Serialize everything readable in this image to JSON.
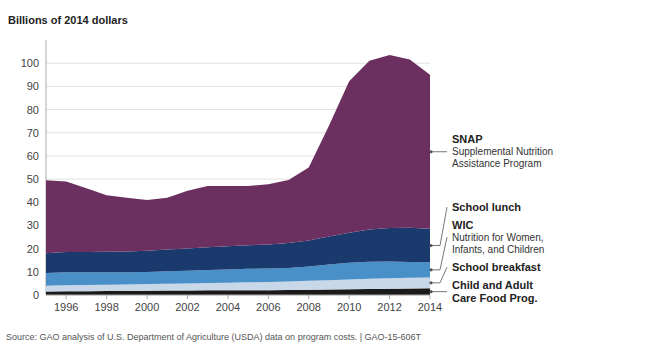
{
  "chart_data": {
    "type": "area",
    "stacked": true,
    "grid": true,
    "ylabel": "Billions of 2014 dollars",
    "x": [
      1995,
      1996,
      1997,
      1998,
      1999,
      2000,
      2001,
      2002,
      2003,
      2004,
      2005,
      2006,
      2007,
      2008,
      2009,
      2010,
      2011,
      2012,
      2013,
      2014
    ],
    "xlim": [
      1995,
      2014
    ],
    "xticks": [
      1996,
      1998,
      2000,
      2002,
      2004,
      2006,
      2008,
      2010,
      2012,
      2014
    ],
    "ylim": [
      0,
      110
    ],
    "yticks": [
      0,
      10,
      20,
      30,
      40,
      50,
      60,
      70,
      80,
      90,
      100
    ],
    "series": [
      {
        "name": "Child and Adult\nCare Food Prog.",
        "color": "#1a1a1a",
        "values": [
          1.5,
          1.6,
          1.6,
          1.7,
          1.7,
          1.8,
          1.9,
          1.9,
          2.0,
          2.0,
          2.1,
          2.1,
          2.2,
          2.3,
          2.4,
          2.5,
          2.6,
          2.7,
          2.8,
          2.9
        ]
      },
      {
        "name": "School breakfast",
        "color": "#c8d8e8",
        "values": [
          2.5,
          2.6,
          2.7,
          2.7,
          2.8,
          2.9,
          3.0,
          3.1,
          3.2,
          3.3,
          3.4,
          3.5,
          3.6,
          3.8,
          4.0,
          4.2,
          4.4,
          4.5,
          4.6,
          4.7
        ]
      },
      {
        "name": "WIC",
        "color": "#4a90c8",
        "values": [
          5.5,
          5.6,
          5.5,
          5.4,
          5.3,
          5.2,
          5.3,
          5.5,
          5.6,
          5.7,
          5.8,
          5.8,
          5.9,
          6.2,
          6.8,
          7.2,
          7.3,
          7.2,
          6.8,
          6.5
        ]
      },
      {
        "name": "School lunch",
        "color": "#1a3a6e",
        "values": [
          8.5,
          8.7,
          8.8,
          8.9,
          9.0,
          9.2,
          9.4,
          9.6,
          9.8,
          10.0,
          10.2,
          10.4,
          10.7,
          11.2,
          12.0,
          13.0,
          14.0,
          14.5,
          14.8,
          14.5
        ]
      },
      {
        "name": "SNAP",
        "color": "#6b3060",
        "values": [
          31.5,
          30.5,
          27.4,
          24.3,
          23.2,
          21.9,
          22.4,
          24.9,
          26.4,
          26.0,
          25.5,
          26.0,
          27.2,
          31.5,
          47.8,
          65.3,
          72.7,
          74.6,
          72.6,
          66.4
        ]
      }
    ],
    "annotations": [
      {
        "text": "Supplemental Nutrition\nAssistance Program",
        "series": "SNAP"
      },
      {
        "text": "Nutrition for Women,\nInfants, and Children",
        "series": "WIC"
      },
      {
        "text": "Source: GAO analysis of U.S. Department of Agriculture (USDA) data on program costs.  |  GAO-15-606T"
      }
    ]
  }
}
